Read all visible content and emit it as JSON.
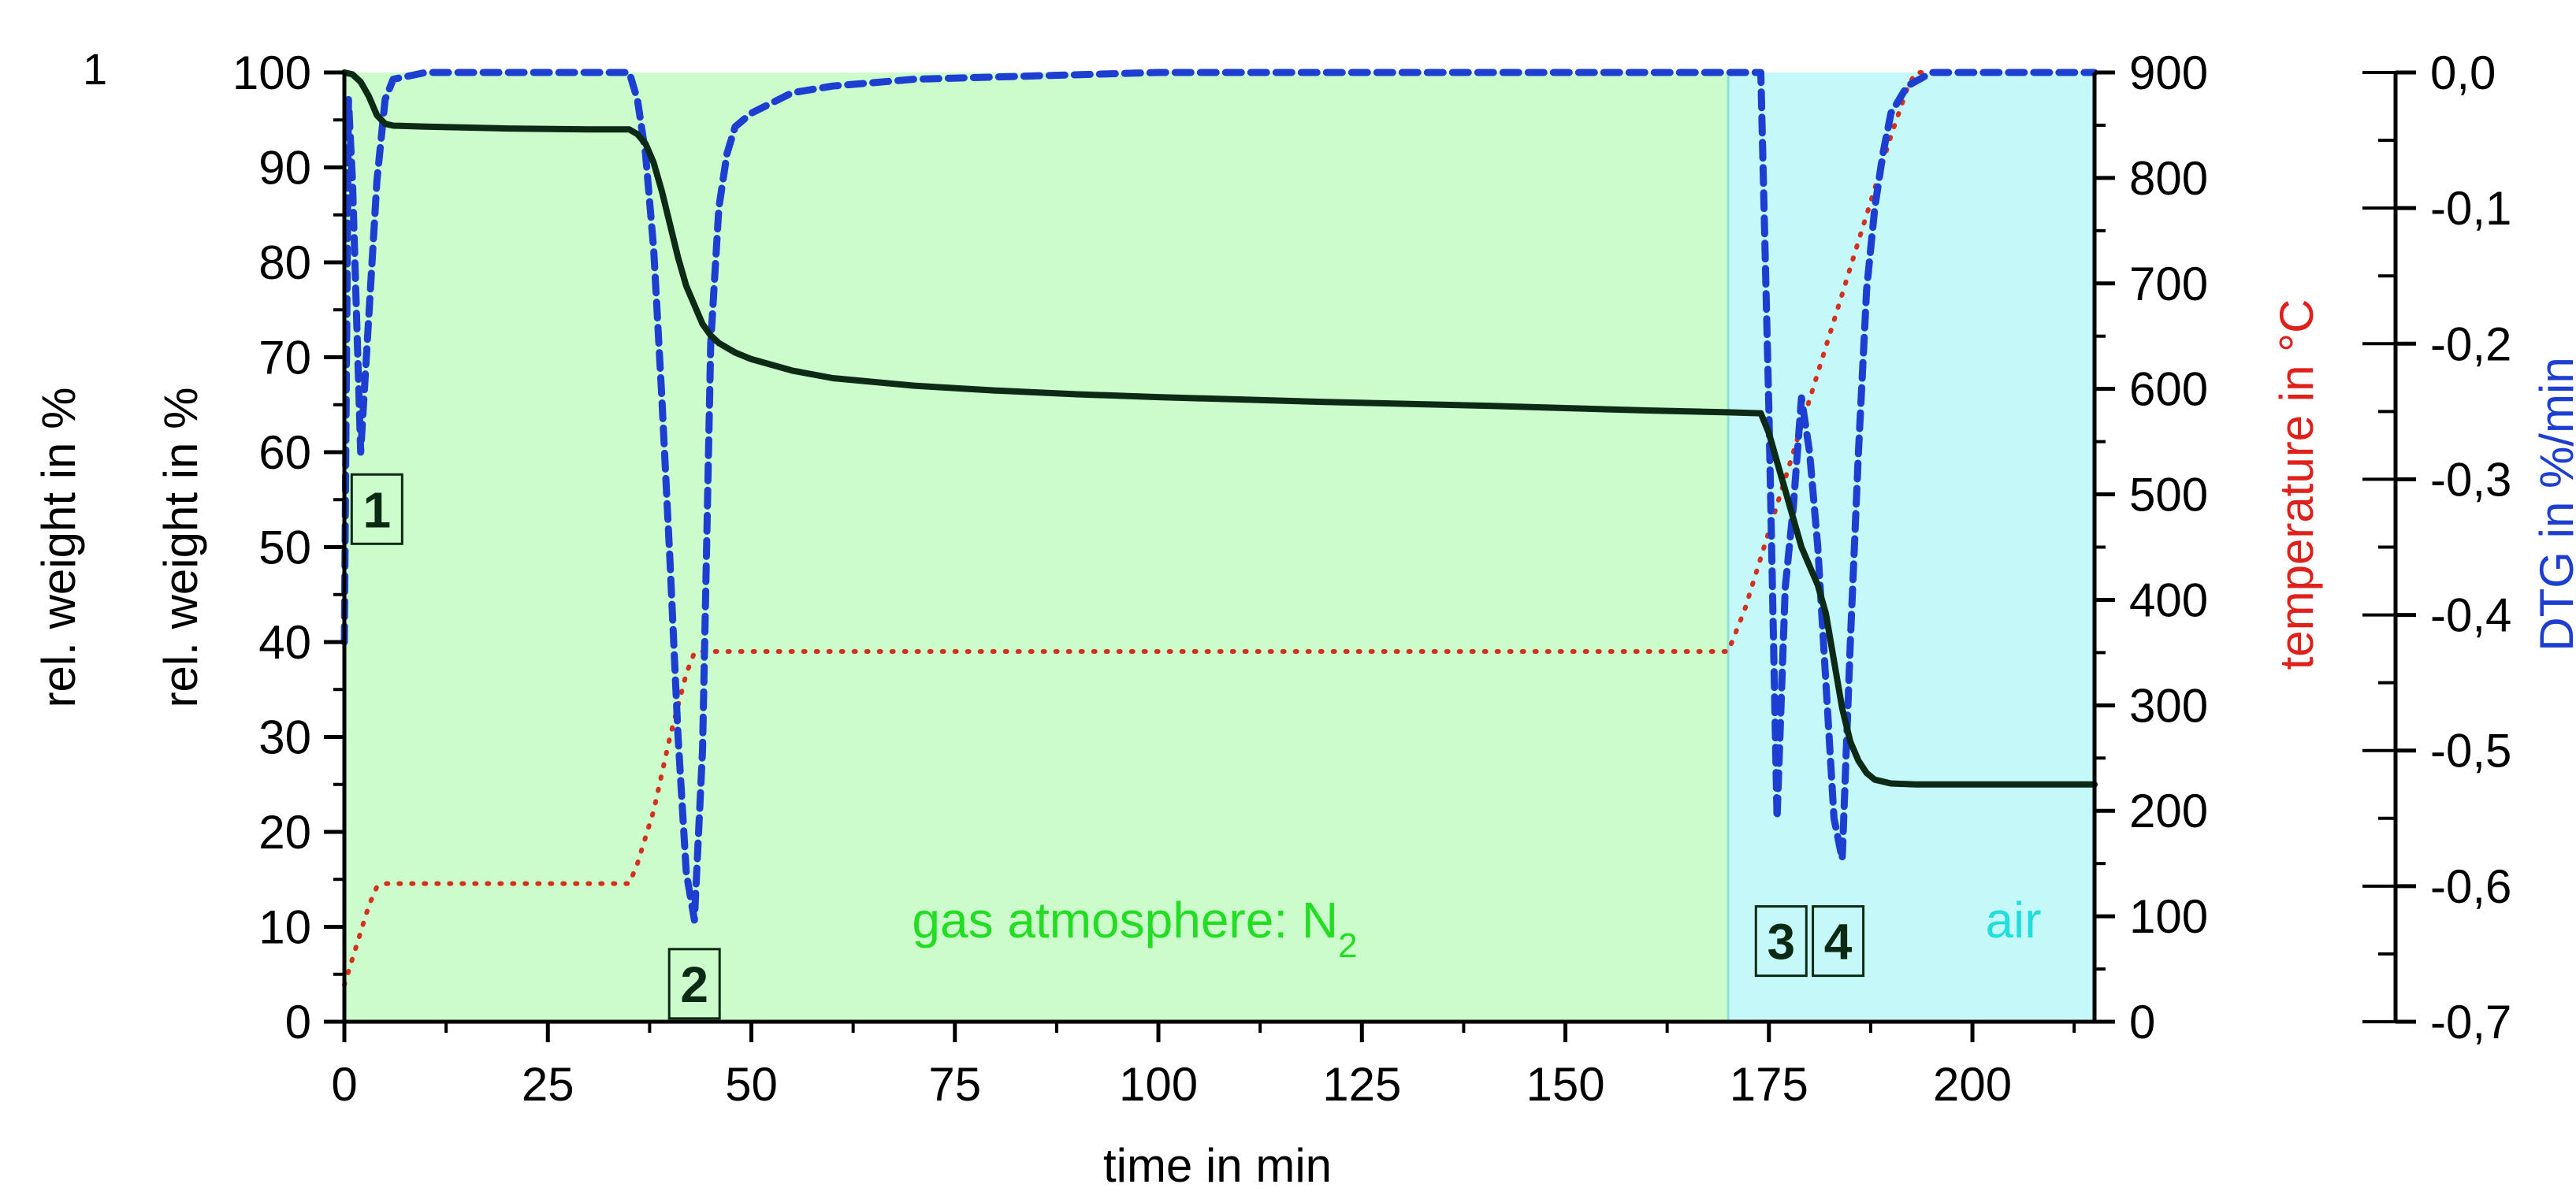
{
  "panel_number": "1",
  "chart_data": {
    "type": "line",
    "x_axis": {
      "label": "time in min",
      "range": [
        0,
        215
      ],
      "ticks": [
        0,
        25,
        50,
        75,
        100,
        125,
        150,
        175,
        200
      ],
      "tick_labels": [
        "0",
        "25",
        "50",
        "75",
        "100",
        "125",
        "150",
        "175",
        "200"
      ]
    },
    "y_axes": {
      "outer_left": {
        "label": "rel. weight in %",
        "color": "#000000"
      },
      "left": {
        "label": "rel. weight in %",
        "range": [
          0,
          100
        ],
        "ticks": [
          0,
          10,
          20,
          30,
          40,
          50,
          60,
          70,
          80,
          90,
          100
        ],
        "tick_labels": [
          "0",
          "10",
          "20",
          "30",
          "40",
          "50",
          "60",
          "70",
          "80",
          "90",
          "100"
        ]
      },
      "right_temperature": {
        "label": "temperature in °C",
        "color": "#e0201b",
        "range": [
          0,
          900
        ],
        "ticks": [
          0,
          100,
          200,
          300,
          400,
          500,
          600,
          700,
          800,
          900
        ],
        "tick_labels": [
          "0",
          "100",
          "200",
          "300",
          "400",
          "500",
          "600",
          "700",
          "800",
          "900"
        ]
      },
      "right_dtg": {
        "label": "DTG in %/min",
        "color": "#1c3fd1",
        "range": [
          -0.7,
          0.0
        ],
        "ticks": [
          0.0,
          -0.1,
          -0.2,
          -0.3,
          -0.4,
          -0.5,
          -0.6,
          -0.7
        ],
        "tick_labels": [
          "0,0",
          "-0,1",
          "-0,2",
          "-0,3",
          "-0,4",
          "-0,5",
          "-0,6",
          "-0,7"
        ]
      }
    },
    "regions": [
      {
        "label": "gas atmosphere: N",
        "subscript": "2",
        "x_range": [
          0,
          170
        ],
        "fill": "#ccfccc",
        "label_color": "#22dd22"
      },
      {
        "label": "air",
        "x_range": [
          170,
          215
        ],
        "fill": "#c5f8f8",
        "label_color": "#22dddd"
      }
    ],
    "markers": [
      {
        "text": "1",
        "x": 4,
        "y": 54
      },
      {
        "text": "2",
        "x": 43,
        "y": 4
      },
      {
        "text": "3",
        "x": 176.5,
        "y": 8.5
      },
      {
        "text": "4",
        "x": 183.5,
        "y": 8.5
      }
    ],
    "series": [
      {
        "name": "rel. weight",
        "axis": "left",
        "color": "#0d2a17",
        "style": "solid",
        "points": [
          [
            0,
            100
          ],
          [
            1,
            99.8
          ],
          [
            2,
            99
          ],
          [
            3,
            97.5
          ],
          [
            4,
            95.5
          ],
          [
            5,
            94.6
          ],
          [
            6,
            94.4
          ],
          [
            10,
            94.3
          ],
          [
            20,
            94.1
          ],
          [
            30,
            94
          ],
          [
            35,
            94
          ],
          [
            36,
            93.5
          ],
          [
            37,
            92.5
          ],
          [
            38,
            90.5
          ],
          [
            39,
            87.5
          ],
          [
            40,
            84
          ],
          [
            41,
            80.5
          ],
          [
            42,
            77.5
          ],
          [
            43,
            75.5
          ],
          [
            44,
            73.5
          ],
          [
            45,
            72.3
          ],
          [
            46,
            71.5
          ],
          [
            48,
            70.5
          ],
          [
            50,
            69.8
          ],
          [
            55,
            68.6
          ],
          [
            60,
            67.8
          ],
          [
            70,
            67
          ],
          [
            80,
            66.5
          ],
          [
            90,
            66.1
          ],
          [
            100,
            65.8
          ],
          [
            120,
            65.3
          ],
          [
            140,
            64.9
          ],
          [
            160,
            64.4
          ],
          [
            170,
            64.2
          ],
          [
            174,
            64.1
          ],
          [
            175,
            62
          ],
          [
            176,
            59
          ],
          [
            177,
            56
          ],
          [
            178,
            53
          ],
          [
            179,
            50
          ],
          [
            180,
            48
          ],
          [
            181,
            46
          ],
          [
            182,
            43
          ],
          [
            183,
            38
          ],
          [
            184,
            33
          ],
          [
            185,
            29.5
          ],
          [
            186,
            27.5
          ],
          [
            187,
            26.2
          ],
          [
            188,
            25.5
          ],
          [
            190,
            25.1
          ],
          [
            193,
            25
          ],
          [
            200,
            25
          ],
          [
            215,
            25
          ]
        ]
      },
      {
        "name": "temperature",
        "axis": "right_temperature",
        "color": "#d4301e",
        "style": "dotted",
        "points": [
          [
            0,
            35
          ],
          [
            1,
            60
          ],
          [
            2,
            85
          ],
          [
            3,
            110
          ],
          [
            4,
            128
          ],
          [
            5,
            131
          ],
          [
            10,
            131
          ],
          [
            20,
            131
          ],
          [
            30,
            131
          ],
          [
            35,
            131
          ],
          [
            36,
            150
          ],
          [
            38,
            200
          ],
          [
            40,
            270
          ],
          [
            42,
            330
          ],
          [
            43,
            350
          ],
          [
            44,
            351
          ],
          [
            50,
            351
          ],
          [
            100,
            351
          ],
          [
            150,
            351
          ],
          [
            170,
            351
          ],
          [
            172,
            390
          ],
          [
            174,
            440
          ],
          [
            176,
            490
          ],
          [
            178,
            540
          ],
          [
            180,
            590
          ],
          [
            182,
            640
          ],
          [
            184,
            690
          ],
          [
            186,
            740
          ],
          [
            188,
            790
          ],
          [
            190,
            840
          ],
          [
            192,
            885
          ],
          [
            193,
            900
          ],
          [
            195,
            900
          ],
          [
            215,
            900
          ]
        ]
      },
      {
        "name": "DTG",
        "axis": "right_dtg",
        "color": "#1c3fd1",
        "style": "dashed",
        "points": [
          [
            0,
            -0.42
          ],
          [
            0.5,
            -0.02
          ],
          [
            1,
            -0.08
          ],
          [
            2,
            -0.28
          ],
          [
            3,
            -0.18
          ],
          [
            4,
            -0.08
          ],
          [
            5,
            -0.02
          ],
          [
            6,
            -0.005
          ],
          [
            10,
            0.0
          ],
          [
            20,
            0.0
          ],
          [
            35,
            0.0
          ],
          [
            36,
            -0.02
          ],
          [
            37,
            -0.06
          ],
          [
            38,
            -0.13
          ],
          [
            39,
            -0.24
          ],
          [
            40,
            -0.36
          ],
          [
            41,
            -0.49
          ],
          [
            42,
            -0.59
          ],
          [
            43,
            -0.625
          ],
          [
            44,
            -0.5
          ],
          [
            45,
            -0.2
          ],
          [
            46,
            -0.1
          ],
          [
            47,
            -0.06
          ],
          [
            48,
            -0.04
          ],
          [
            50,
            -0.03
          ],
          [
            55,
            -0.015
          ],
          [
            60,
            -0.01
          ],
          [
            70,
            -0.005
          ],
          [
            100,
            0.0
          ],
          [
            174,
            0.0
          ],
          [
            175,
            -0.25
          ],
          [
            176,
            -0.55
          ],
          [
            177,
            -0.38
          ],
          [
            178,
            -0.32
          ],
          [
            179,
            -0.24
          ],
          [
            180,
            -0.28
          ],
          [
            181,
            -0.35
          ],
          [
            182,
            -0.45
          ],
          [
            183,
            -0.55
          ],
          [
            184,
            -0.58
          ],
          [
            185,
            -0.42
          ],
          [
            186,
            -0.28
          ],
          [
            187,
            -0.16
          ],
          [
            188,
            -0.1
          ],
          [
            189,
            -0.06
          ],
          [
            190,
            -0.03
          ],
          [
            192,
            -0.01
          ],
          [
            195,
            0.0
          ],
          [
            215,
            0.0
          ]
        ]
      }
    ]
  }
}
